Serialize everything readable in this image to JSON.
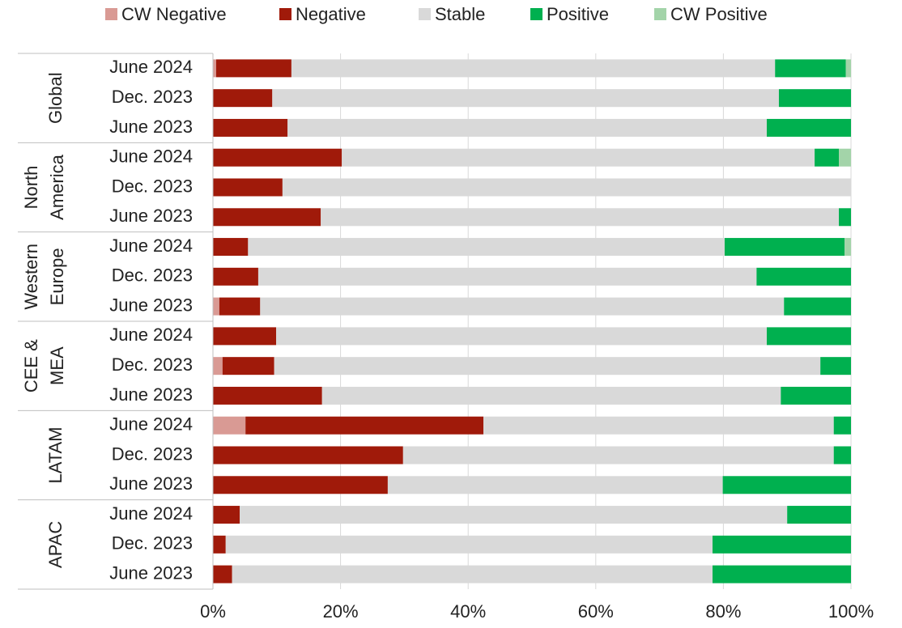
{
  "chart_data": {
    "type": "bar",
    "orientation": "horizontal",
    "stacked": true,
    "groups": [
      {
        "name": [
          "Global"
        ],
        "categories": [
          "June 2024",
          "Dec. 2023",
          "June 2023"
        ]
      },
      {
        "name": [
          "North",
          "America"
        ],
        "categories": [
          "June 2024",
          "Dec. 2023",
          "June 2023"
        ]
      },
      {
        "name": [
          "Western",
          "Europe"
        ],
        "categories": [
          "June 2024",
          "Dec. 2023",
          "June 2023"
        ]
      },
      {
        "name": [
          "CEE &",
          "MEA"
        ],
        "categories": [
          "June 2024",
          "Dec. 2023",
          "June 2023"
        ]
      },
      {
        "name": [
          "LATAM"
        ],
        "categories": [
          "June 2024",
          "Dec. 2023",
          "June 2023"
        ]
      },
      {
        "name": [
          "APAC"
        ],
        "categories": [
          "June 2024",
          "Dec. 2023",
          "June 2023"
        ]
      }
    ],
    "series": [
      {
        "name": "CW Negative",
        "color": "#d99a94",
        "values": [
          0.5,
          0,
          0,
          0,
          0,
          0,
          0,
          0,
          1.0,
          0,
          1.5,
          0,
          5.1,
          0,
          0,
          0,
          0,
          0
        ]
      },
      {
        "name": "Negative",
        "color": "#a01a0a",
        "values": [
          11.8,
          9.3,
          11.7,
          20.2,
          10.9,
          16.9,
          5.5,
          7.1,
          6.4,
          9.9,
          8.1,
          17.1,
          37.3,
          29.8,
          27.4,
          4.2,
          2.0,
          3.0
        ]
      },
      {
        "name": "Stable",
        "color": "#d9d9d9",
        "values": [
          75.8,
          79.4,
          75.1,
          74.1,
          89.1,
          81.2,
          74.7,
          78.1,
          82.1,
          76.9,
          85.6,
          71.9,
          54.9,
          67.5,
          52.5,
          85.8,
          76.3,
          75.3
        ]
      },
      {
        "name": "Positive",
        "color": "#00b04f",
        "values": [
          11.1,
          11.3,
          13.2,
          3.8,
          0,
          1.9,
          18.8,
          14.8,
          10.5,
          13.2,
          4.8,
          11.0,
          2.7,
          2.7,
          20.1,
          10.0,
          21.7,
          21.7
        ]
      },
      {
        "name": "CW Positive",
        "color": "#a3d4a9",
        "values": [
          0.8,
          0,
          0,
          1.9,
          0,
          0,
          1.0,
          0,
          0,
          0,
          0,
          0,
          0,
          0,
          0,
          0,
          0,
          0
        ]
      }
    ],
    "xlim": [
      0,
      100
    ],
    "xticks": [
      {
        "value": 0,
        "label": "0%"
      },
      {
        "value": 20,
        "label": "20%"
      },
      {
        "value": 40,
        "label": "40%"
      },
      {
        "value": 60,
        "label": "60%"
      },
      {
        "value": 80,
        "label": "80%"
      },
      {
        "value": 100,
        "label": "100%"
      }
    ],
    "grid": true,
    "legend": "top"
  }
}
